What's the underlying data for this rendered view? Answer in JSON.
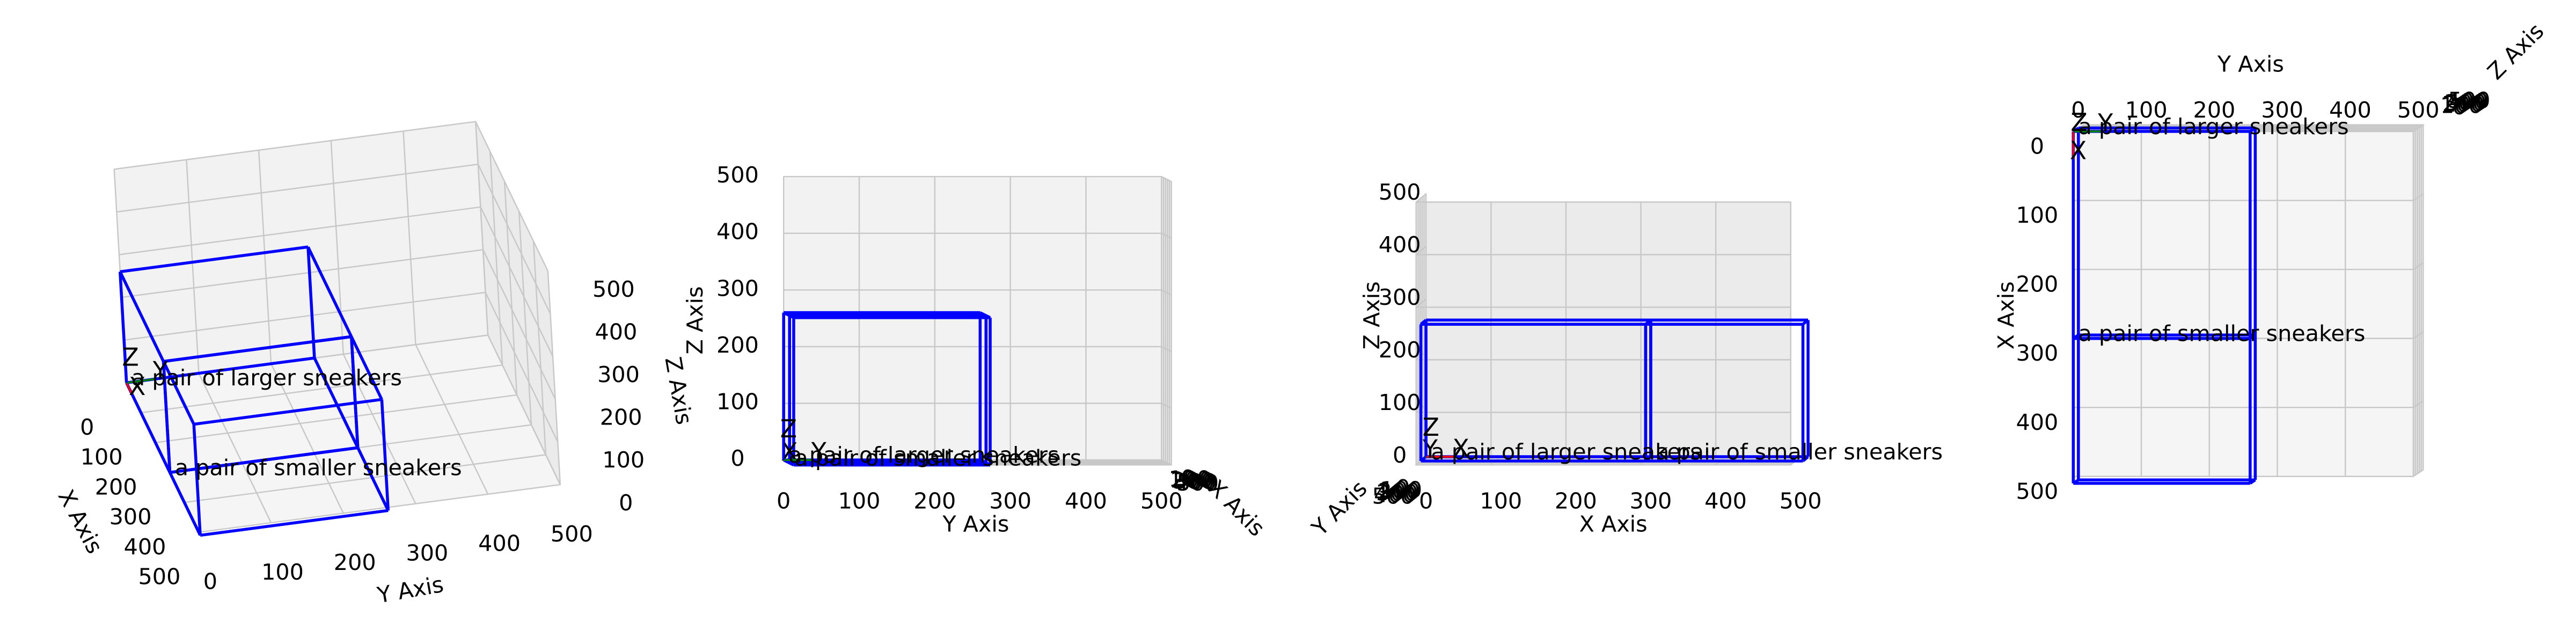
{
  "chart_data": [
    {
      "type": "box3d",
      "xlabel": "X Axis",
      "ylabel": "Y Axis",
      "zlabel": "Z Axis",
      "xlim": [
        0,
        500
      ],
      "ylim": [
        0,
        500
      ],
      "zlim": [
        0,
        500
      ],
      "xticks": [
        0,
        100,
        200,
        300,
        400,
        500
      ],
      "yticks": [
        0,
        100,
        200,
        300,
        400,
        500
      ],
      "zticks": [
        0,
        100,
        200,
        300,
        400,
        500
      ],
      "grid": true,
      "annotation_color": "#ff0000",
      "boxes": [
        {
          "name": "a pair of larger sneakers",
          "x": [
            0,
            300
          ],
          "y": [
            0,
            260
          ],
          "z": [
            0,
            260
          ],
          "color": "#0000ff"
        },
        {
          "name": "a pair of smaller sneakers",
          "x": [
            300,
            510
          ],
          "y": [
            0,
            260
          ],
          "z": [
            0,
            260
          ],
          "color": "#0000ff"
        }
      ],
      "axis_markers": [
        {
          "label": "X",
          "color": "#ff0000"
        },
        {
          "label": "Y",
          "color": "#008000"
        },
        {
          "label": "Z",
          "color": "#0000ff"
        }
      ]
    },
    {
      "type": "box3d",
      "xlabel": "X Axis",
      "ylabel": "Y Axis",
      "zlabel": "Z Axis",
      "xlim": [
        0,
        500
      ],
      "ylim": [
        0,
        500
      ],
      "zlim": [
        0,
        500
      ],
      "xticks": [
        0,
        100,
        200,
        300,
        400,
        500
      ],
      "yticks": [
        0,
        100,
        200,
        300,
        400,
        500
      ],
      "zticks": [
        0,
        100,
        200,
        300,
        400,
        500
      ],
      "grid": true,
      "annotation_color": "#ff0000",
      "boxes": [
        {
          "name": "a pair of larger sneakers",
          "x": [
            0,
            300
          ],
          "y": [
            0,
            260
          ],
          "z": [
            0,
            260
          ],
          "color": "#0000ff"
        },
        {
          "name": "a pair of smaller sneakers",
          "x": [
            300,
            510
          ],
          "y": [
            0,
            260
          ],
          "z": [
            0,
            260
          ],
          "color": "#0000ff"
        }
      ],
      "axis_markers": [
        {
          "label": "X",
          "color": "#ff0000"
        },
        {
          "label": "Y",
          "color": "#008000"
        },
        {
          "label": "Z",
          "color": "#0000ff"
        }
      ]
    },
    {
      "type": "box3d",
      "xlabel": "X Axis",
      "ylabel": "Y Axis",
      "zlabel": "Z Axis",
      "xlim": [
        0,
        500
      ],
      "ylim": [
        0,
        500
      ],
      "zlim": [
        0,
        500
      ],
      "xticks": [
        0,
        100,
        200,
        300,
        400,
        500
      ],
      "yticks": [
        0,
        100,
        200,
        300,
        400,
        500
      ],
      "zticks": [
        0,
        100,
        200,
        300,
        400,
        500
      ],
      "grid": true,
      "annotation_color": "#ff0000",
      "boxes": [
        {
          "name": "a pair of larger sneakers",
          "x": [
            0,
            300
          ],
          "y": [
            0,
            260
          ],
          "z": [
            0,
            260
          ],
          "color": "#0000ff"
        },
        {
          "name": "a pair of smaller sneakers",
          "x": [
            300,
            510
          ],
          "y": [
            0,
            260
          ],
          "z": [
            0,
            260
          ],
          "color": "#0000ff"
        }
      ],
      "axis_markers": [
        {
          "label": "X",
          "color": "#ff0000"
        },
        {
          "label": "Y",
          "color": "#008000"
        },
        {
          "label": "Z",
          "color": "#0000ff"
        }
      ]
    },
    {
      "type": "box3d",
      "xlabel": "X Axis",
      "ylabel": "Y Axis",
      "zlabel": "Z Axis",
      "xlim": [
        0,
        500
      ],
      "ylim": [
        0,
        500
      ],
      "zlim": [
        0,
        500
      ],
      "xticks": [
        0,
        100,
        200,
        300,
        400,
        500
      ],
      "yticks": [
        0,
        100,
        200,
        300,
        400,
        500
      ],
      "zticks": [
        0,
        100,
        200,
        300,
        400,
        500
      ],
      "grid": true,
      "annotation_color": "#ff0000",
      "boxes": [
        {
          "name": "a pair of larger sneakers",
          "x": [
            0,
            300
          ],
          "y": [
            0,
            260
          ],
          "z": [
            0,
            260
          ],
          "color": "#0000ff"
        },
        {
          "name": "a pair of smaller sneakers",
          "x": [
            300,
            510
          ],
          "y": [
            0,
            260
          ],
          "z": [
            0,
            260
          ],
          "color": "#0000ff"
        }
      ],
      "axis_markers": [
        {
          "label": "X",
          "color": "#ff0000"
        },
        {
          "label": "Y",
          "color": "#008000"
        },
        {
          "label": "Z",
          "color": "#0000ff"
        }
      ]
    }
  ]
}
